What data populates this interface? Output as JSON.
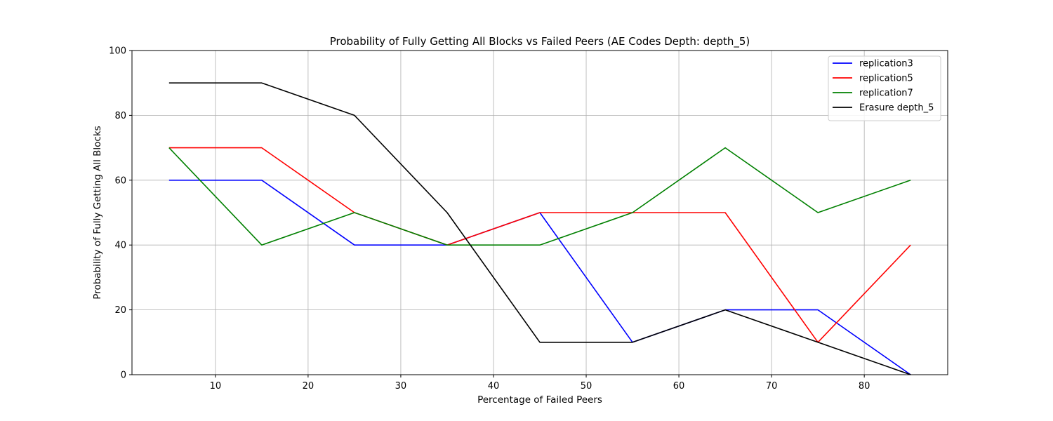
{
  "chart_data": {
    "type": "line",
    "title": "Probability of Fully Getting All Blocks vs Failed Peers (AE Codes Depth: depth_5)",
    "xlabel": "Percentage of Failed Peers",
    "ylabel": "Probability of Fully Getting All Blocks",
    "xlim": [
      1,
      89
    ],
    "ylim": [
      0,
      100
    ],
    "xticks": [
      10,
      20,
      30,
      40,
      50,
      60,
      70,
      80
    ],
    "yticks": [
      0,
      20,
      40,
      60,
      80,
      100
    ],
    "grid": true,
    "legend_position": "top-right",
    "x": [
      5,
      15,
      25,
      35,
      45,
      55,
      65,
      75,
      85
    ],
    "series": [
      {
        "name": "replication3",
        "color": "#0000ff",
        "values": [
          60,
          60,
          40,
          40,
          50,
          10,
          20,
          20,
          0
        ]
      },
      {
        "name": "replication5",
        "color": "#ff0000",
        "values": [
          70,
          70,
          50,
          40,
          50,
          50,
          50,
          10,
          40
        ]
      },
      {
        "name": "replication7",
        "color": "#008000",
        "values": [
          70,
          40,
          50,
          40,
          40,
          50,
          70,
          50,
          60
        ]
      },
      {
        "name": "Erasure depth_5",
        "color": "#000000",
        "values": [
          90,
          90,
          80,
          50,
          10,
          10,
          20,
          10,
          0
        ]
      }
    ]
  }
}
